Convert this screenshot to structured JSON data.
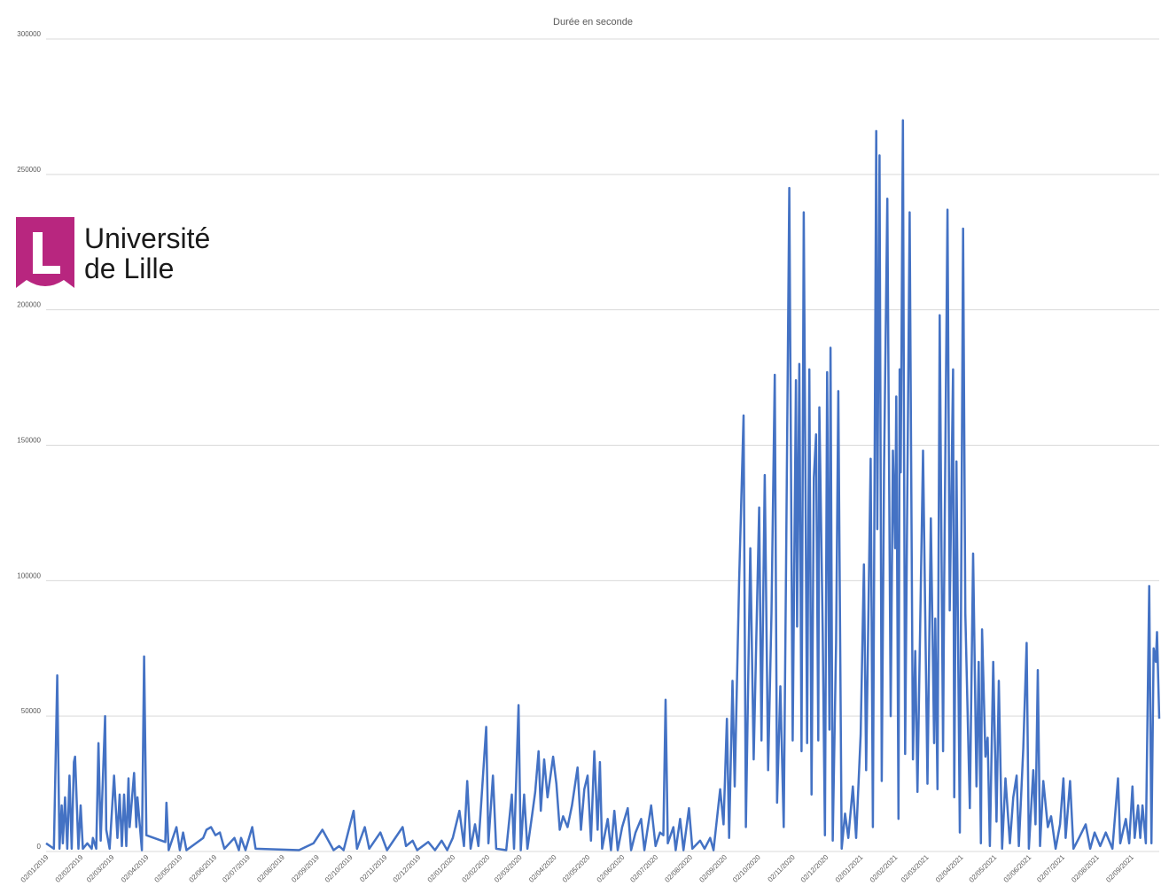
{
  "logo": {
    "line1": "Université",
    "line2": "de Lille"
  },
  "chart_data": {
    "type": "line",
    "title": "Durée en seconde",
    "color": "#4472c4",
    "grid": true,
    "xlim": [
      "02/01/2019",
      "27/09/2021"
    ],
    "xticks": [
      "02/01/2019",
      "02/02/2019",
      "02/03/2019",
      "02/04/2019",
      "02/05/2019",
      "02/06/2019",
      "02/07/2019",
      "02/08/2019",
      "02/09/2019",
      "02/10/2019",
      "02/11/2019",
      "02/12/2019",
      "02/01/2020",
      "02/02/2020",
      "02/03/2020",
      "02/04/2020",
      "02/05/2020",
      "02/06/2020",
      "02/07/2020",
      "02/08/2020",
      "02/09/2020",
      "02/10/2020",
      "02/11/2020",
      "02/12/2020",
      "02/01/2021",
      "02/02/2021",
      "02/03/2021",
      "02/04/2021",
      "02/05/2021",
      "02/06/2021",
      "02/07/2021",
      "02/08/2021",
      "02/09/2021"
    ],
    "ylim": [
      0,
      300000
    ],
    "yticks": [
      0,
      50000,
      100000,
      150000,
      200000,
      250000,
      300000
    ],
    "x": [
      "02/01/2019",
      "09/01/2019",
      "12/01/2019",
      "14/01/2019",
      "16/01/2019",
      "17/01/2019",
      "19/01/2019",
      "21/01/2019",
      "23/01/2019",
      "25/01/2019",
      "27/01/2019",
      "28/01/2019",
      "31/01/2019",
      "02/02/2019",
      "04/02/2019",
      "08/02/2019",
      "12/02/2019",
      "13/02/2019",
      "16/02/2019",
      "18/02/2019",
      "20/02/2019",
      "24/02/2019",
      "25/02/2019",
      "28/02/2019",
      "04/03/2019",
      "07/03/2019",
      "09/03/2019",
      "11/03/2019",
      "13/03/2019",
      "15/03/2019",
      "17/03/2019",
      "18/03/2019",
      "22/03/2019",
      "24/03/2019",
      "25/03/2019",
      "29/03/2019",
      "31/03/2019",
      "02/04/2019",
      "19/04/2019",
      "20/04/2019",
      "22/04/2019",
      "29/04/2019",
      "02/05/2019",
      "05/05/2019",
      "08/05/2019",
      "23/05/2019",
      "26/05/2019",
      "30/05/2019",
      "03/06/2019",
      "07/06/2019",
      "11/06/2019",
      "20/06/2019",
      "24/06/2019",
      "26/06/2019",
      "30/06/2019",
      "06/07/2019",
      "09/07/2019",
      "17/08/2019",
      "30/08/2019",
      "07/09/2019",
      "17/09/2019",
      "22/09/2019",
      "26/09/2019",
      "05/10/2019",
      "08/10/2019",
      "15/10/2019",
      "19/10/2019",
      "29/10/2019",
      "04/11/2019",
      "18/11/2019",
      "21/11/2019",
      "27/11/2019",
      "01/12/2019",
      "11/12/2019",
      "17/12/2019",
      "23/12/2019",
      "28/12/2019",
      "02/01/2020",
      "08/01/2020",
      "12/01/2020",
      "15/01/2020",
      "18/01/2020",
      "22/01/2020",
      "25/01/2020",
      "01/02/2020",
      "03/02/2020",
      "07/02/2020",
      "10/02/2020",
      "19/02/2020",
      "24/02/2020",
      "26/02/2020",
      "01/03/2020",
      "03/03/2020",
      "06/03/2020",
      "09/03/2020",
      "13/03/2020",
      "16/03/2020",
      "19/03/2020",
      "21/03/2020",
      "24/03/2020",
      "27/03/2020",
      "01/04/2020",
      "04/04/2020",
      "07/04/2020",
      "10/04/2020",
      "14/04/2020",
      "18/04/2020",
      "23/04/2020",
      "26/04/2020",
      "29/04/2020",
      "02/05/2020",
      "05/05/2020",
      "08/05/2020",
      "11/05/2020",
      "13/05/2020",
      "15/05/2020",
      "20/05/2020",
      "23/05/2020",
      "26/05/2020",
      "29/05/2020",
      "02/06/2020",
      "07/06/2020",
      "10/06/2020",
      "14/06/2020",
      "19/06/2020",
      "22/06/2020",
      "28/06/2020",
      "02/07/2020",
      "06/07/2020",
      "09/07/2020",
      "11/07/2020",
      "13/07/2020",
      "18/07/2020",
      "20/07/2020",
      "24/07/2020",
      "27/07/2020",
      "01/08/2020",
      "04/08/2020",
      "11/08/2020",
      "15/08/2020",
      "20/08/2020",
      "23/08/2020",
      "29/08/2020",
      "01/09/2020",
      "04/09/2020",
      "06/09/2020",
      "09/09/2020",
      "11/09/2020",
      "15/09/2020",
      "19/09/2020",
      "21/09/2020",
      "25/09/2020",
      "28/09/2020",
      "03/10/2020",
      "05/10/2020",
      "08/10/2020",
      "11/10/2020",
      "14/10/2020",
      "17/10/2020",
      "19/10/2020",
      "22/10/2020",
      "25/10/2020",
      "27/10/2020",
      "30/10/2020",
      "02/11/2020",
      "05/11/2020",
      "06/11/2020",
      "08/11/2020",
      "10/11/2020",
      "12/11/2020",
      "15/11/2020",
      "17/11/2020",
      "19/11/2020",
      "21/11/2020",
      "23/11/2020",
      "25/11/2020",
      "26/11/2020",
      "29/11/2020",
      "01/12/2020",
      "03/12/2020",
      "05/12/2020",
      "06/12/2020",
      "08/12/2020",
      "11/12/2020",
      "13/12/2020",
      "16/12/2020",
      "19/12/2020",
      "22/12/2020",
      "26/12/2020",
      "29/12/2020",
      "02/01/2021",
      "05/01/2021",
      "07/01/2021",
      "11/01/2021",
      "13/01/2021",
      "16/01/2021",
      "17/01/2021",
      "19/01/2021",
      "21/01/2021",
      "23/01/2021",
      "26/01/2021",
      "29/01/2021",
      "31/01/2021",
      "02/02/2021",
      "03/02/2021",
      "05/02/2021",
      "06/02/2021",
      "07/02/2021",
      "09/02/2021",
      "11/02/2021",
      "13/02/2021",
      "15/02/2021",
      "18/02/2021",
      "20/02/2021",
      "22/02/2021",
      "27/02/2021",
      "03/03/2021",
      "06/03/2021",
      "09/03/2021",
      "10/03/2021",
      "12/03/2021",
      "14/03/2021",
      "17/03/2021",
      "18/03/2021",
      "21/03/2021",
      "23/03/2021",
      "26/03/2021",
      "27/03/2021",
      "29/03/2021",
      "01/04/2021",
      "04/04/2021",
      "06/04/2021",
      "10/04/2021",
      "13/04/2021",
      "16/04/2021",
      "18/04/2021",
      "20/04/2021",
      "21/04/2021",
      "24/04/2021",
      "26/04/2021",
      "28/04/2021",
      "01/05/2021",
      "04/05/2021",
      "06/05/2021",
      "09/05/2021",
      "12/05/2021",
      "16/05/2021",
      "19/05/2021",
      "22/05/2021",
      "24/05/2021",
      "28/05/2021",
      "31/05/2021",
      "02/06/2021",
      "06/06/2021",
      "08/06/2021",
      "10/06/2021",
      "12/06/2021",
      "15/06/2021",
      "19/06/2021",
      "22/06/2021",
      "26/06/2021",
      "30/06/2021",
      "03/07/2021",
      "05/07/2021",
      "09/07/2021",
      "12/07/2021",
      "17/07/2021",
      "23/07/2021",
      "27/07/2021",
      "31/07/2021",
      "05/08/2021",
      "10/08/2021",
      "16/08/2021",
      "21/08/2021",
      "23/08/2021",
      "28/08/2021",
      "31/08/2021",
      "03/09/2021",
      "05/09/2021",
      "08/09/2021",
      "10/09/2021",
      "12/09/2021",
      "15/09/2021",
      "18/09/2021",
      "20/09/2021",
      "22/09/2021",
      "24/09/2021",
      "25/09/2021",
      "27/09/2021"
    ],
    "values": [
      3000,
      1000,
      65000,
      1000,
      17000,
      3000,
      20000,
      1000,
      28000,
      1000,
      33000,
      35000,
      1000,
      17000,
      1000,
      3000,
      1000,
      5000,
      1000,
      40000,
      4000,
      50000,
      8000,
      1000,
      28000,
      5000,
      21000,
      2000,
      21000,
      2000,
      27000,
      9000,
      29000,
      9000,
      20000,
      500,
      72000,
      6000,
      3500,
      18000,
      500,
      9000,
      500,
      7000,
      500,
      5000,
      8000,
      9000,
      6000,
      7000,
      1000,
      5000,
      500,
      5000,
      500,
      9000,
      1000,
      500,
      3000,
      8000,
      500,
      2000,
      500,
      15000,
      1000,
      9000,
      1000,
      7000,
      500,
      9000,
      2000,
      4000,
      500,
      3500,
      500,
      4000,
      500,
      5000,
      15000,
      2000,
      26000,
      1000,
      10000,
      2000,
      46000,
      3000,
      28000,
      1000,
      500,
      21000,
      1000,
      54000,
      500,
      21000,
      1000,
      13000,
      22000,
      37000,
      15000,
      34000,
      20000,
      35000,
      25000,
      8000,
      13000,
      9000,
      17000,
      31000,
      8000,
      23000,
      28000,
      4000,
      37000,
      8000,
      33000,
      1000,
      12000,
      500,
      15000,
      500,
      9000,
      16000,
      500,
      7000,
      12000,
      500,
      17000,
      2000,
      7000,
      6000,
      56000,
      3000,
      9000,
      500,
      12000,
      500,
      16000,
      1000,
      4000,
      1000,
      5000,
      500,
      23000,
      10000,
      49000,
      5000,
      63000,
      24000,
      100000,
      161000,
      9000,
      112000,
      34000,
      127000,
      41000,
      139000,
      30000,
      88000,
      176000,
      18000,
      61000,
      9000,
      100000,
      245000,
      41000,
      174000,
      83000,
      180000,
      37000,
      236000,
      40000,
      178000,
      21000,
      138000,
      154000,
      41000,
      164000,
      81000,
      6000,
      177000,
      45000,
      186000,
      4000,
      77000,
      170000,
      1000,
      14000,
      5000,
      24000,
      5000,
      43000,
      106000,
      30000,
      145000,
      9000,
      266000,
      119000,
      257000,
      26000,
      141000,
      241000,
      50000,
      148000,
      112000,
      168000,
      12000,
      178000,
      140000,
      270000,
      36000,
      138000,
      236000,
      34000,
      74000,
      22000,
      148000,
      25000,
      123000,
      40000,
      86000,
      23000,
      198000,
      37000,
      97000,
      237000,
      89000,
      178000,
      20000,
      144000,
      7000,
      230000,
      88000,
      16000,
      110000,
      24000,
      70000,
      3000,
      82000,
      35000,
      42000,
      2000,
      70000,
      11000,
      63000,
      1000,
      27000,
      3000,
      20000,
      28000,
      2000,
      38000,
      77000,
      1000,
      30000,
      10000,
      67000,
      2000,
      26000,
      9000,
      13000,
      1000,
      10000,
      27000,
      5000,
      26000,
      1000,
      5000,
      10000,
      1000,
      7000,
      2000,
      7000,
      1000,
      27000,
      3000,
      12000,
      3000,
      24000,
      5000,
      17000,
      5000,
      17000,
      3000,
      98000,
      3000,
      75000,
      70000,
      81000,
      49000
    ]
  }
}
